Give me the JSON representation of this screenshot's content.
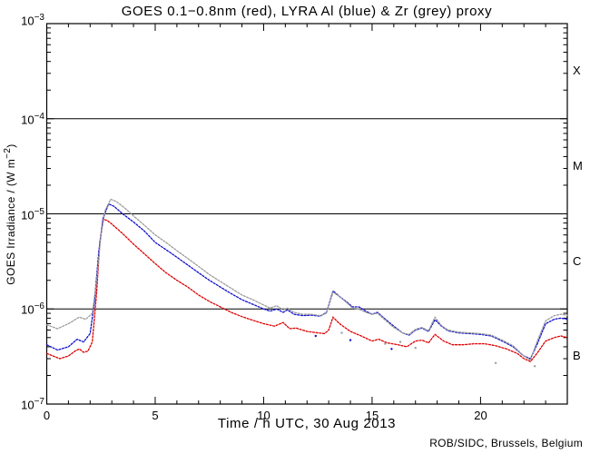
{
  "title": "GOES 0.1−0.8nm (red), LYRA Al (blue) & Zr (grey) proxy",
  "credit": "ROB/SIDC, Brussels, Belgium",
  "axes": {
    "x": {
      "label": "Time / h UTC, 30 Aug 2013",
      "ticks": [
        "0",
        "5",
        "10",
        "15",
        "20"
      ],
      "tick_values": [
        0,
        5,
        10,
        15,
        20
      ],
      "minor_step_hours": 1,
      "range_hours": [
        0,
        24
      ]
    },
    "y": {
      "label_pre": "GOES Irradiance / (W m",
      "label_exp": "−2",
      "label_post": ")",
      "ticks": [
        {
          "base": "10",
          "exp": "−3"
        },
        {
          "base": "10",
          "exp": "−4"
        },
        {
          "base": "10",
          "exp": "−5"
        },
        {
          "base": "10",
          "exp": "−6"
        },
        {
          "base": "10",
          "exp": "−7"
        }
      ],
      "scale": "log10",
      "range_w_m2": [
        1e-07,
        0.001
      ]
    },
    "right_class_labels": [
      "X",
      "M",
      "C",
      "B"
    ]
  },
  "colors": {
    "red": "#dd0000",
    "blue": "#0f0fcc",
    "grey": "#9c9c9c",
    "axis": "#000000",
    "background": "#ffffff"
  },
  "chart_data": {
    "type": "line",
    "title": "GOES 0.1−0.8nm (red), LYRA Al (blue) & Zr (grey) proxy",
    "xlabel": "Time / h UTC, 30 Aug 2013",
    "ylabel": "GOES Irradiance / (W m⁻²)",
    "date": "30 Aug 2013",
    "legend": "encoded in title: red = GOES 0.1−0.8nm, blue = LYRA Al proxy, grey = LYRA Zr proxy",
    "xlim": [
      0,
      24
    ],
    "ylim": [
      1e-07,
      0.001
    ],
    "grid": false,
    "hlines_flare_class_boundaries": [
      1e-06,
      1e-05,
      0.0001
    ],
    "class_labels": [
      "X",
      "M",
      "C",
      "B"
    ],
    "series": [
      {
        "name": "GOES 0.1-0.8nm",
        "color_key": "red",
        "points": [
          [
            0,
            3.4e-07
          ],
          [
            0.3,
            3.2e-07
          ],
          [
            0.6,
            3e-07
          ],
          [
            1.0,
            3.2e-07
          ],
          [
            1.3,
            3.6e-07
          ],
          [
            1.5,
            3.8e-07
          ],
          [
            1.7,
            3.5e-07
          ],
          [
            1.9,
            3.6e-07
          ],
          [
            2.1,
            4.5e-07
          ],
          [
            2.3,
            1.5e-06
          ],
          [
            2.45,
            5e-06
          ],
          [
            2.6,
            8.8e-06
          ],
          [
            2.8,
            8.5e-06
          ],
          [
            3.0,
            7.8e-06
          ],
          [
            3.5,
            6.2e-06
          ],
          [
            4.0,
            4.8e-06
          ],
          [
            4.5,
            3.8e-06
          ],
          [
            5.0,
            3e-06
          ],
          [
            5.5,
            2.4e-06
          ],
          [
            6.0,
            2e-06
          ],
          [
            6.5,
            1.7e-06
          ],
          [
            7.0,
            1.4e-06
          ],
          [
            7.5,
            1.2e-06
          ],
          [
            8.0,
            1.05e-06
          ],
          [
            8.5,
            9.2e-07
          ],
          [
            9.0,
            8.3e-07
          ],
          [
            9.5,
            7.6e-07
          ],
          [
            10.0,
            7e-07
          ],
          [
            10.5,
            6.6e-07
          ],
          [
            10.9,
            7.2e-07
          ],
          [
            11.2,
            6.2e-07
          ],
          [
            11.5,
            6.3e-07
          ],
          [
            12.0,
            5.8e-07
          ],
          [
            12.5,
            5.6e-07
          ],
          [
            12.8,
            5.5e-07
          ],
          [
            13.0,
            6e-07
          ],
          [
            13.2,
            8.2e-07
          ],
          [
            13.5,
            7e-07
          ],
          [
            14.0,
            5.8e-07
          ],
          [
            14.5,
            5.2e-07
          ],
          [
            15.0,
            4.6e-07
          ],
          [
            15.3,
            4.8e-07
          ],
          [
            15.7,
            4.4e-07
          ],
          [
            16.2,
            4.2e-07
          ],
          [
            16.6,
            4e-07
          ],
          [
            17.0,
            4.6e-07
          ],
          [
            17.3,
            4.7e-07
          ],
          [
            17.6,
            4.4e-07
          ],
          [
            17.9,
            5.4e-07
          ],
          [
            18.3,
            4.6e-07
          ],
          [
            18.7,
            4.2e-07
          ],
          [
            19.2,
            4.2e-07
          ],
          [
            19.7,
            4.3e-07
          ],
          [
            20.2,
            4.3e-07
          ],
          [
            20.7,
            4.1e-07
          ],
          [
            21.2,
            3.8e-07
          ],
          [
            21.7,
            3.4e-07
          ],
          [
            22.0,
            3e-07
          ],
          [
            22.3,
            2.8e-07
          ],
          [
            22.6,
            3.4e-07
          ],
          [
            23.0,
            4.6e-07
          ],
          [
            23.4,
            5e-07
          ],
          [
            23.7,
            5.2e-07
          ],
          [
            24.0,
            5e-07
          ]
        ]
      },
      {
        "name": "LYRA Al proxy",
        "color_key": "blue",
        "points": [
          [
            0,
            4.2e-07
          ],
          [
            0.5,
            3.7e-07
          ],
          [
            1.0,
            4e-07
          ],
          [
            1.4,
            4.8e-07
          ],
          [
            1.7,
            4.5e-07
          ],
          [
            2.0,
            5.5e-07
          ],
          [
            2.2,
            1.2e-06
          ],
          [
            2.4,
            4e-06
          ],
          [
            2.6,
            9e-06
          ],
          [
            2.85,
            1.27e-05
          ],
          [
            3.1,
            1.2e-05
          ],
          [
            3.5,
            1e-05
          ],
          [
            4.0,
            8.2e-06
          ],
          [
            4.5,
            6.6e-06
          ],
          [
            5.0,
            5e-06
          ],
          [
            5.5,
            4.2e-06
          ],
          [
            6.0,
            3.5e-06
          ],
          [
            6.5,
            2.9e-06
          ],
          [
            7.0,
            2.4e-06
          ],
          [
            7.5,
            2e-06
          ],
          [
            8.0,
            1.7e-06
          ],
          [
            8.5,
            1.45e-06
          ],
          [
            9.0,
            1.25e-06
          ],
          [
            9.5,
            1.12e-06
          ],
          [
            10.0,
            1e-06
          ],
          [
            10.3,
            9.5e-07
          ],
          [
            10.6,
            1e-06
          ],
          [
            10.9,
            9.2e-07
          ],
          [
            11.1,
            9.8e-07
          ],
          [
            11.4,
            8.8e-07
          ],
          [
            11.8,
            8.5e-07
          ],
          [
            12.2,
            8.6e-07
          ],
          [
            12.6,
            8.4e-07
          ],
          [
            12.9,
            9.2e-07
          ],
          [
            13.2,
            1.55e-06
          ],
          [
            13.5,
            1.35e-06
          ],
          [
            13.8,
            1.2e-06
          ],
          [
            14.1,
            1.05e-06
          ],
          [
            14.4,
            1.05e-06
          ],
          [
            14.7,
            9.5e-07
          ],
          [
            15.0,
            8.8e-07
          ],
          [
            15.25,
            9.2e-07
          ],
          [
            15.5,
            8.2e-07
          ],
          [
            16.0,
            6.6e-07
          ],
          [
            16.4,
            5.6e-07
          ],
          [
            16.7,
            5.3e-07
          ],
          [
            17.0,
            6e-07
          ],
          [
            17.3,
            6.3e-07
          ],
          [
            17.6,
            5.8e-07
          ],
          [
            17.9,
            7.7e-07
          ],
          [
            18.2,
            6.6e-07
          ],
          [
            18.5,
            5.9e-07
          ],
          [
            19.0,
            5.6e-07
          ],
          [
            19.5,
            5.5e-07
          ],
          [
            20.0,
            5.4e-07
          ],
          [
            20.5,
            5.2e-07
          ],
          [
            21.0,
            4.6e-07
          ],
          [
            21.5,
            4e-07
          ],
          [
            22.0,
            3.2e-07
          ],
          [
            22.3,
            3e-07
          ],
          [
            22.6,
            4.2e-07
          ],
          [
            23.0,
            7e-07
          ],
          [
            23.4,
            7.8e-07
          ],
          [
            23.7,
            8e-07
          ],
          [
            24.0,
            7.8e-07
          ]
        ]
      },
      {
        "name": "LYRA Zr proxy",
        "color_key": "grey",
        "points": [
          [
            0,
            6.8e-07
          ],
          [
            0.5,
            6.2e-07
          ],
          [
            1.0,
            7e-07
          ],
          [
            1.5,
            8.2e-07
          ],
          [
            1.8,
            7.8e-07
          ],
          [
            2.1,
            9e-07
          ],
          [
            2.3,
            2e-06
          ],
          [
            2.5,
            6e-06
          ],
          [
            2.7,
            1.1e-05
          ],
          [
            2.95,
            1.42e-05
          ],
          [
            3.2,
            1.35e-05
          ],
          [
            3.6,
            1.15e-05
          ],
          [
            4.0,
            9.5e-06
          ],
          [
            4.5,
            7.6e-06
          ],
          [
            5.0,
            6e-06
          ],
          [
            5.5,
            5e-06
          ],
          [
            6.0,
            4.1e-06
          ],
          [
            6.5,
            3.4e-06
          ],
          [
            7.0,
            2.8e-06
          ],
          [
            7.5,
            2.3e-06
          ],
          [
            8.0,
            1.95e-06
          ],
          [
            8.5,
            1.65e-06
          ],
          [
            9.0,
            1.4e-06
          ],
          [
            9.5,
            1.25e-06
          ],
          [
            10.0,
            1.1e-06
          ],
          [
            10.3,
            1.02e-06
          ],
          [
            10.6,
            1.08e-06
          ],
          [
            10.9,
            9.8e-07
          ],
          [
            11.1,
            1.02e-06
          ],
          [
            11.4,
            9.2e-07
          ],
          [
            11.8,
            8.8e-07
          ],
          [
            12.2,
            8.8e-07
          ],
          [
            12.6,
            8.5e-07
          ],
          [
            12.9,
            9e-07
          ],
          [
            13.2,
            1.5e-06
          ],
          [
            13.5,
            1.35e-06
          ],
          [
            13.8,
            1.18e-06
          ],
          [
            14.1,
            1.02e-06
          ],
          [
            14.4,
            1e-06
          ],
          [
            14.7,
            9.2e-07
          ],
          [
            15.0,
            8.8e-07
          ],
          [
            15.25,
            9e-07
          ],
          [
            15.5,
            8e-07
          ],
          [
            16.0,
            6.4e-07
          ],
          [
            16.4,
            5.6e-07
          ],
          [
            16.7,
            5.4e-07
          ],
          [
            17.0,
            6.1e-07
          ],
          [
            17.3,
            6.4e-07
          ],
          [
            17.6,
            5.9e-07
          ],
          [
            17.9,
            8.2e-07
          ],
          [
            18.2,
            6.7e-07
          ],
          [
            18.5,
            6e-07
          ],
          [
            19.0,
            5.7e-07
          ],
          [
            19.5,
            5.6e-07
          ],
          [
            20.0,
            5.5e-07
          ],
          [
            20.5,
            5.3e-07
          ],
          [
            21.0,
            4.7e-07
          ],
          [
            21.5,
            4.1e-07
          ],
          [
            22.0,
            3.2e-07
          ],
          [
            22.3,
            2.9e-07
          ],
          [
            22.6,
            4.5e-07
          ],
          [
            23.0,
            7.5e-07
          ],
          [
            23.4,
            8.5e-07
          ],
          [
            23.7,
            8.8e-07
          ],
          [
            24.0,
            8.6e-07
          ]
        ]
      }
    ],
    "outliers": [
      [
        12.4,
        5.2e-07,
        "blue"
      ],
      [
        13.6,
        5.6e-07,
        "grey"
      ],
      [
        14.0,
        4.7e-07,
        "blue"
      ],
      [
        15.6,
        4.3e-07,
        "grey"
      ],
      [
        15.9,
        3.8e-07,
        "blue"
      ],
      [
        16.3,
        4.5e-07,
        "grey"
      ],
      [
        17.0,
        3.9e-07,
        "grey"
      ],
      [
        20.7,
        2.7e-07,
        "grey"
      ],
      [
        22.5,
        2.5e-07,
        "grey"
      ]
    ]
  }
}
